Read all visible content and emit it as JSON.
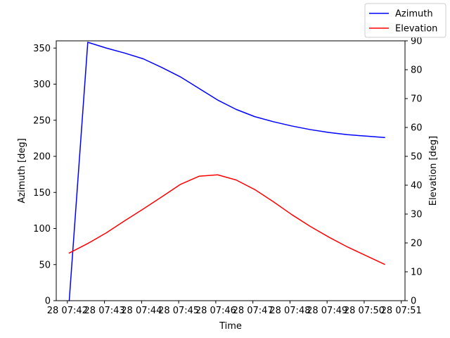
{
  "chart_data": {
    "type": "line",
    "title": "",
    "xlabel": "Time",
    "ylabel_left": "Azimuth [deg]",
    "ylabel_right": "Elevation [deg]",
    "x_tick_labels": [
      "28 07:42",
      "28 07:43",
      "28 07:44",
      "28 07:45",
      "28 07:46",
      "28 07:47",
      "28 07:48",
      "28 07:49",
      "28 07:50",
      "28 07:51"
    ],
    "x_ticks_minutes": [
      42,
      43,
      44,
      45,
      46,
      47,
      48,
      49,
      50,
      51
    ],
    "xlim_minutes": [
      41.7,
      51.1
    ],
    "ylim_left": [
      0,
      360
    ],
    "ylim_right": [
      0,
      90
    ],
    "y_ticks_left": [
      0,
      50,
      100,
      150,
      200,
      250,
      300,
      350
    ],
    "y_ticks_right": [
      0,
      10,
      20,
      30,
      40,
      50,
      60,
      70,
      80,
      90
    ],
    "grid": false,
    "legend_position": "top-right",
    "series": [
      {
        "name": "Azimuth",
        "axis": "left",
        "color": "#0000ff",
        "x_minutes": [
          42.05,
          42.55,
          43.05,
          43.55,
          44.05,
          44.55,
          45.05,
          45.55,
          46.05,
          46.55,
          47.05,
          47.55,
          48.05,
          48.55,
          49.05,
          49.55,
          50.05,
          50.55
        ],
        "values": [
          0,
          358,
          350,
          343,
          335,
          323,
          310,
          294,
          278,
          265,
          255,
          248,
          242,
          237,
          233,
          230,
          228,
          226
        ]
      },
      {
        "name": "Elevation",
        "axis": "right",
        "color": "#ff0000",
        "x_minutes": [
          42.05,
          42.55,
          43.05,
          43.55,
          44.05,
          44.55,
          45.05,
          45.55,
          46.05,
          46.55,
          47.05,
          47.55,
          48.05,
          48.55,
          49.05,
          49.55,
          50.05,
          50.55
        ],
        "values": [
          16.5,
          19.8,
          23.5,
          27.7,
          31.8,
          36.0,
          40.3,
          43.1,
          43.6,
          41.8,
          38.5,
          34.3,
          29.8,
          25.7,
          22.0,
          18.6,
          15.6,
          12.6
        ]
      }
    ]
  }
}
